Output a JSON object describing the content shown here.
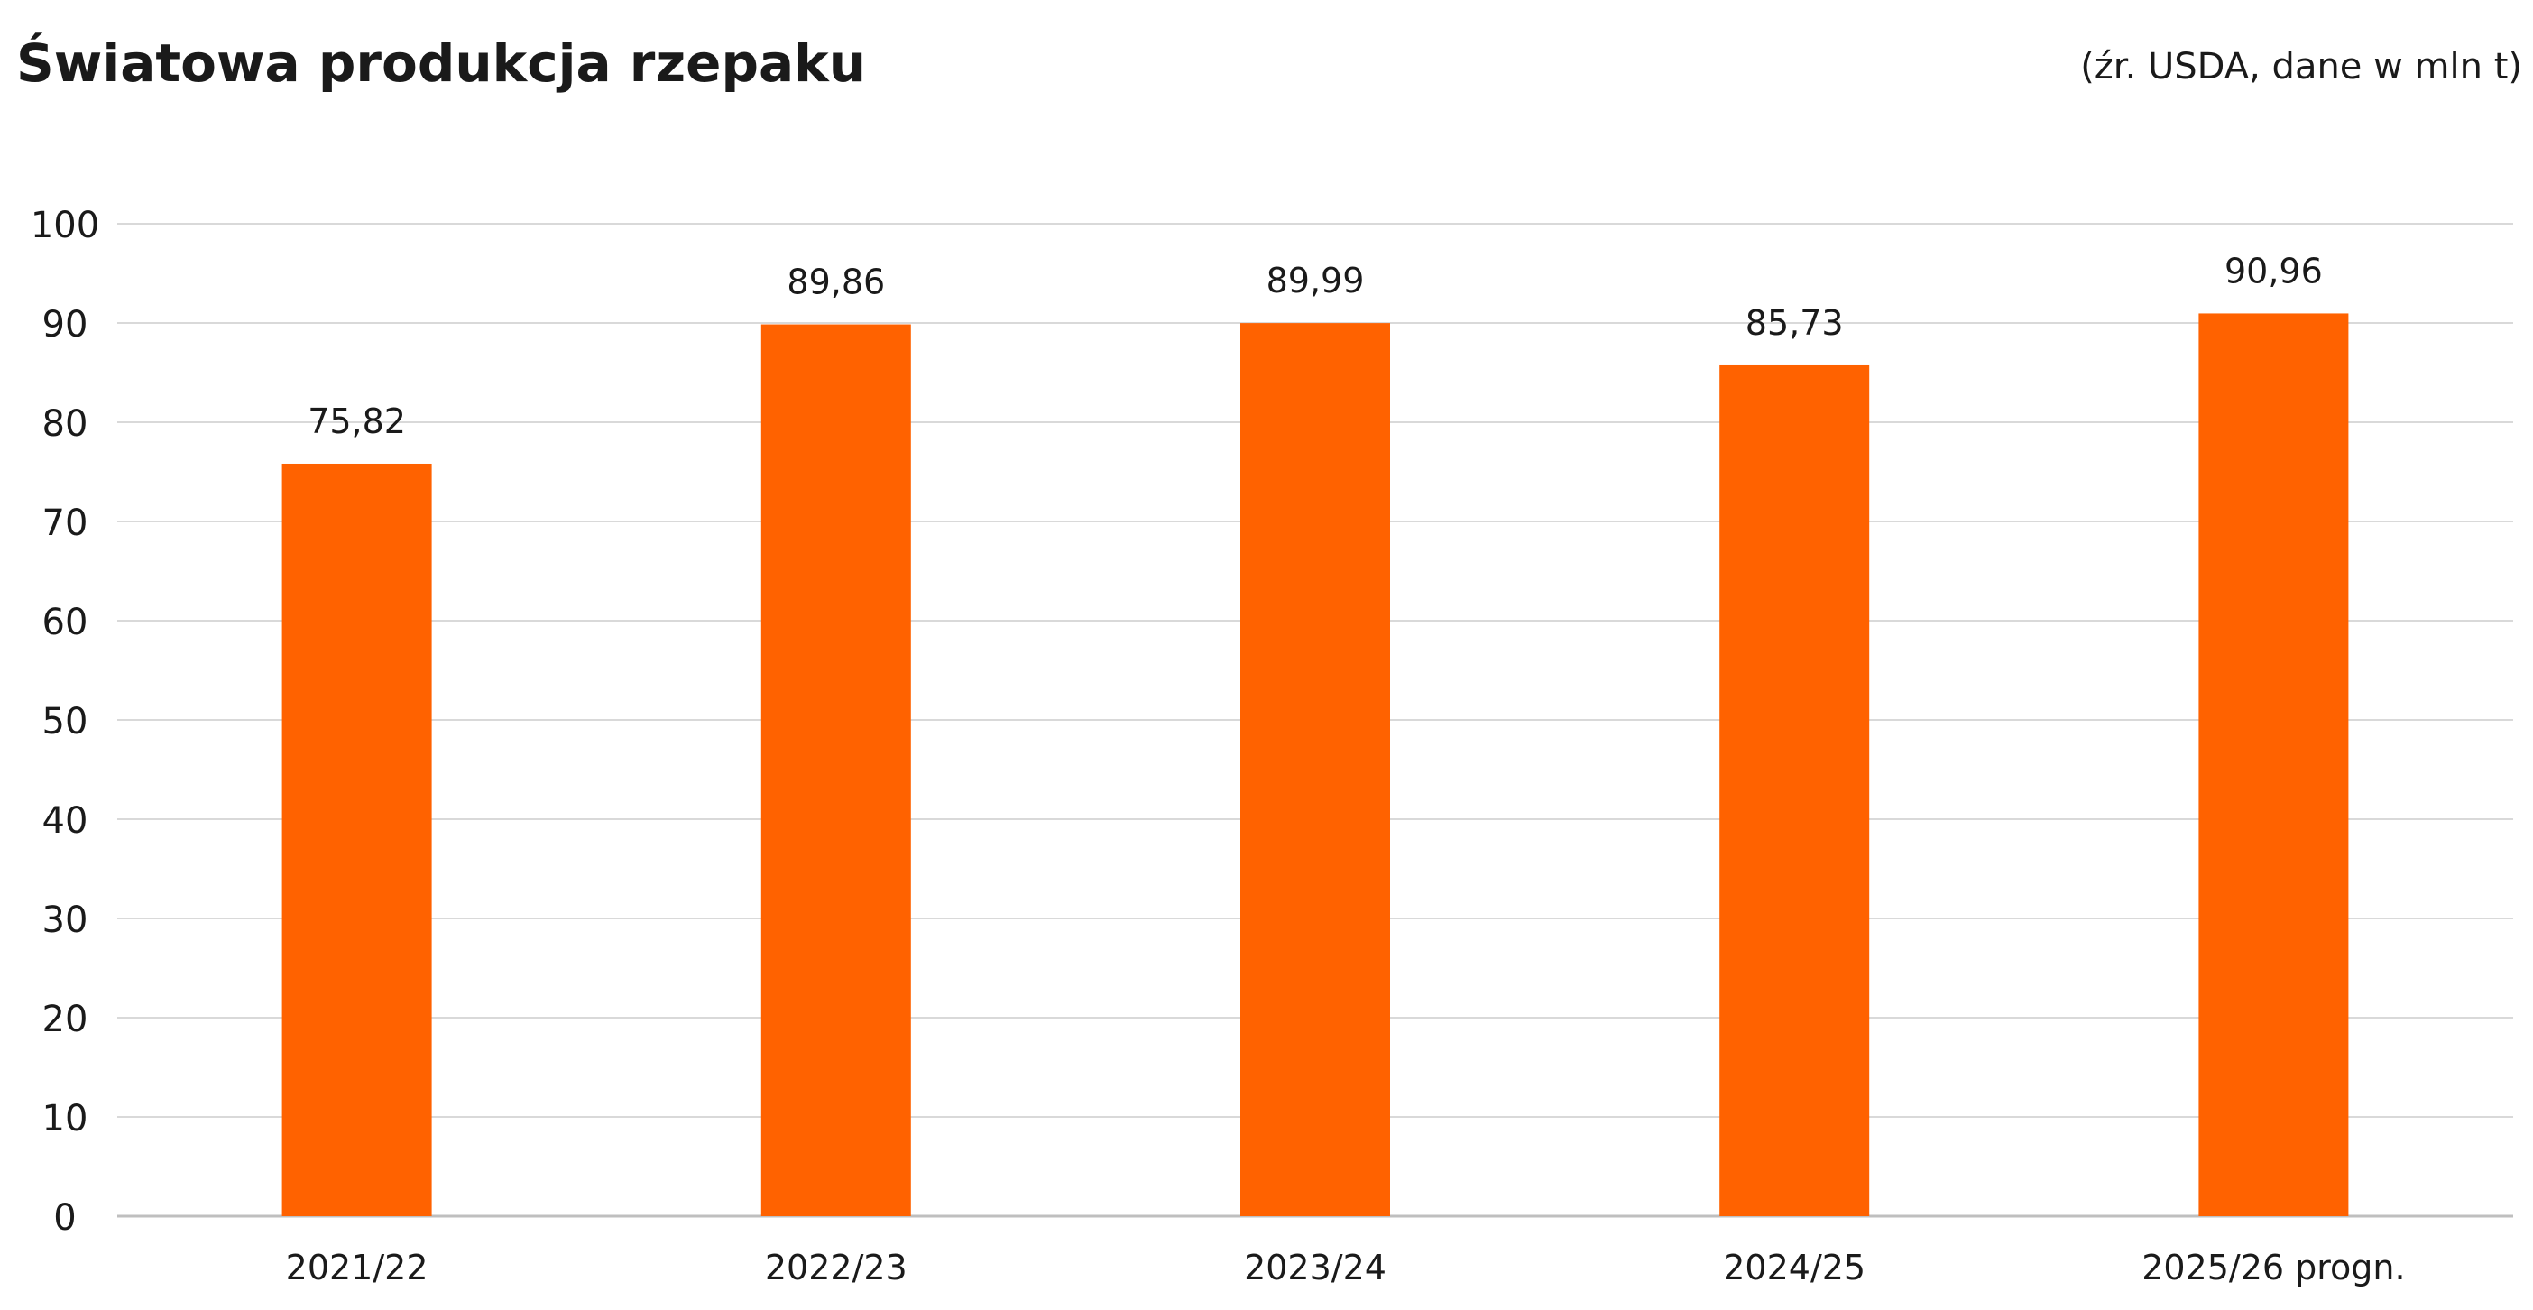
{
  "chart_data": {
    "type": "bar",
    "title": "Światowa produkcja rzepaku",
    "subtitle": "(źr. USDA, dane w mln t)",
    "categories": [
      "2021/22",
      "2022/23",
      "2023/24",
      "2024/25",
      "2025/26 progn."
    ],
    "values": [
      75.82,
      89.86,
      89.99,
      85.73,
      90.96
    ],
    "value_labels": [
      "75,82",
      "89,86",
      "89,99",
      "85,73",
      "90,96"
    ],
    "ylim": [
      0,
      100
    ],
    "yticks": [
      0,
      10,
      20,
      30,
      40,
      50,
      60,
      70,
      80,
      90,
      100
    ],
    "grid": true,
    "legend": "none",
    "bar_color": "#FF6200",
    "grid_color": "#d9d9d9"
  }
}
